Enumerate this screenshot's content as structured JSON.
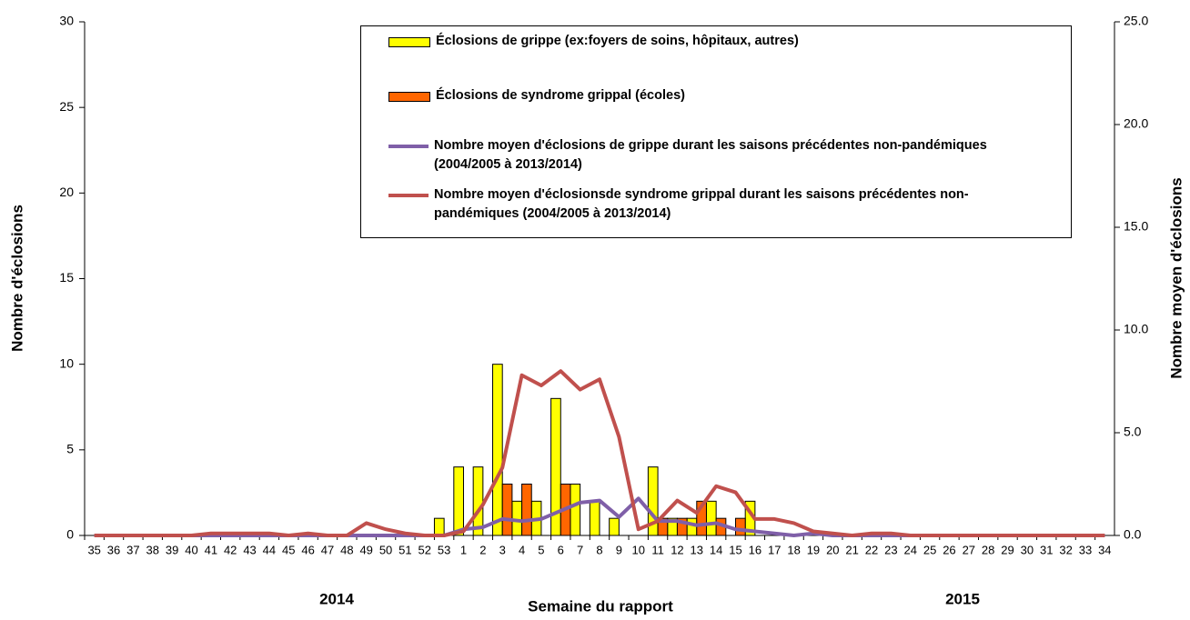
{
  "chart_data": {
    "type": "bar",
    "x_label": "Semaine du rapport",
    "y_label": "Nombre d'éclosions",
    "y2_label": "Nombre moyen d'éclosions",
    "annotations": [
      "2014",
      "2015"
    ],
    "categories": [
      "35",
      "36",
      "37",
      "38",
      "39",
      "40",
      "41",
      "42",
      "43",
      "44",
      "45",
      "46",
      "47",
      "48",
      "49",
      "50",
      "51",
      "52",
      "53",
      "1",
      "2",
      "3",
      "4",
      "5",
      "6",
      "7",
      "8",
      "9",
      "10",
      "11",
      "12",
      "13",
      "14",
      "15",
      "16",
      "17",
      "18",
      "19",
      "20",
      "21",
      "22",
      "23",
      "24",
      "25",
      "26",
      "27",
      "28",
      "29",
      "30",
      "31",
      "32",
      "33",
      "34"
    ],
    "ylim": [
      0,
      30
    ],
    "yticks": [
      0,
      5,
      10,
      15,
      20,
      25,
      30
    ],
    "y2lim": [
      0,
      25
    ],
    "y2ticks": [
      {
        "value": 0,
        "label": "0.0"
      },
      {
        "value": 5,
        "label": "5.0"
      },
      {
        "value": 10,
        "label": "10.0"
      },
      {
        "value": 15,
        "label": "15.0"
      },
      {
        "value": 20,
        "label": "20.0"
      },
      {
        "value": 25,
        "label": "25.0"
      }
    ],
    "series": [
      {
        "name": "Éclosions de grippe (ex:foyers de soins, hôpitaux, autres)",
        "type": "bar",
        "color": "#ffff00",
        "values": [
          0,
          0,
          0,
          0,
          0,
          0,
          0,
          0,
          0,
          0,
          0,
          0,
          0,
          0,
          0,
          0,
          0,
          0,
          1,
          4,
          4,
          10,
          2,
          2,
          8,
          3,
          2,
          1,
          0,
          4,
          1,
          1,
          2,
          0,
          2,
          0,
          0,
          0,
          0,
          0,
          0,
          0,
          0,
          0,
          0,
          0,
          0,
          0,
          0,
          0,
          0,
          0,
          0
        ]
      },
      {
        "name": "Éclosions de syndrome grippal (écoles)",
        "type": "bar",
        "color": "#ff6600",
        "values": [
          0,
          0,
          0,
          0,
          0,
          0,
          0,
          0,
          0,
          0,
          0,
          0,
          0,
          0,
          0,
          0,
          0,
          0,
          0,
          0,
          0,
          3,
          3,
          0,
          3,
          0,
          0,
          0,
          0,
          1,
          1,
          2,
          1,
          1,
          0,
          0,
          0,
          0,
          0,
          0,
          0,
          0,
          0,
          0,
          0,
          0,
          0,
          0,
          0,
          0,
          0,
          0,
          0
        ]
      },
      {
        "name": "Nombre moyen d'éclosions de grippe durant les saisons précédentes non-pandémiques (2004/2005 à 2013/2014)",
        "type": "line",
        "axis": "y2",
        "color": "#7f5fa8",
        "values": [
          0,
          0,
          0,
          0,
          0,
          0,
          0,
          0,
          0,
          0,
          0,
          0,
          0,
          0,
          0,
          0,
          0,
          0,
          0,
          0.3,
          0.4,
          0.8,
          0.7,
          0.8,
          1.2,
          1.6,
          1.7,
          0.9,
          1.8,
          0.7,
          0.7,
          0.5,
          0.6,
          0.3,
          0.2,
          0.1,
          0,
          0.1,
          0,
          0,
          0,
          0,
          0,
          0,
          0,
          0,
          0,
          0,
          0,
          0,
          0,
          0,
          0
        ]
      },
      {
        "name": "Nombre moyen d'éclosionsde syndrome grippal  durant les saisons précédentes non-pandémiques (2004/2005 à 2013/2014)",
        "type": "line",
        "axis": "y2",
        "color": "#c0504d",
        "values": [
          0,
          0,
          0,
          0,
          0,
          0,
          0.1,
          0.1,
          0.1,
          0.1,
          0,
          0.1,
          0,
          0,
          0.6,
          0.3,
          0.1,
          0,
          0,
          0.2,
          1.5,
          3.3,
          7.8,
          7.3,
          8,
          7.1,
          7.6,
          4.8,
          0.3,
          0.7,
          1.7,
          1.1,
          2.4,
          2.1,
          0.8,
          0.8,
          0.6,
          0.2,
          0.1,
          0,
          0.1,
          0.1,
          0,
          0,
          0,
          0,
          0,
          0,
          0,
          0,
          0,
          0,
          0
        ]
      }
    ]
  }
}
